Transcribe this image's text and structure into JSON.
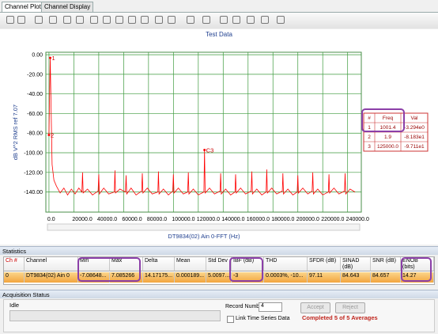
{
  "tabs": [
    "Channel Plot",
    "Channel Display"
  ],
  "chart": {
    "title": "Test Data",
    "y_label": "dB V^2 RMS ref 7.07",
    "x_label": "DT9834(02) Ain 0-FFT (Hz)",
    "xlim": [
      -2500,
      251000
    ],
    "ylim": [
      -160.5,
      2.5
    ],
    "yticks": [
      {
        "value": 0,
        "label": "0.00"
      },
      {
        "value": -20,
        "label": "-20.00"
      },
      {
        "value": -40,
        "label": "-40.00"
      },
      {
        "value": -60,
        "label": "-60.00"
      },
      {
        "value": -80,
        "label": "-80.00"
      },
      {
        "value": -100,
        "label": "-100.00"
      },
      {
        "value": -120,
        "label": "-120.00"
      },
      {
        "value": -140,
        "label": "-140.00"
      }
    ],
    "xticks": [
      {
        "value": 0,
        "label": "0.0"
      },
      {
        "value": 20000,
        "label": "20000.0"
      },
      {
        "value": 40000,
        "label": "40000.0"
      },
      {
        "value": 60000,
        "label": "60000.0"
      },
      {
        "value": 80000,
        "label": "80000.0"
      },
      {
        "value": 100000,
        "label": "100000.0"
      },
      {
        "value": 120000,
        "label": "120000.0"
      },
      {
        "value": 140000,
        "label": "140000.0"
      },
      {
        "value": 160000,
        "label": "160000.0"
      },
      {
        "value": 180000,
        "label": "180000.0"
      },
      {
        "value": 200000,
        "label": "200000.0"
      },
      {
        "value": 220000,
        "label": "220000.0"
      },
      {
        "value": 240000,
        "label": "240000.0"
      }
    ],
    "trace": {
      "color": "#ff0000",
      "x": [
        1.9,
        1001.4,
        2500,
        4000,
        6000,
        9000,
        12000,
        15000,
        18000,
        21000,
        24000,
        26500,
        27000,
        27500,
        31000,
        35000,
        39500,
        40000,
        40500,
        44000,
        48000,
        52500,
        53000,
        53500,
        57000,
        61500,
        62000,
        62500,
        66000,
        70000,
        74500,
        75000,
        75500,
        79000,
        83000,
        87500,
        88000,
        88500,
        92000,
        96000,
        99500,
        100000,
        100500,
        104000,
        108000,
        111500,
        112000,
        112500,
        116000,
        120000,
        124500,
        125000,
        125500,
        129000,
        133000,
        137500,
        138000,
        138500,
        142000,
        146000,
        149500,
        150000,
        150500,
        154000,
        158000,
        162500,
        163000,
        163500,
        167000,
        171000,
        174500,
        175000,
        175500,
        179000,
        183000,
        187500,
        188000,
        188500,
        192000,
        196000,
        199500,
        200000,
        200500,
        204000,
        208000,
        211500,
        212000,
        212500,
        216000,
        220000,
        224500,
        225000,
        225500,
        229000,
        233000,
        237500,
        238000,
        238500,
        242000,
        246000
      ],
      "y": [
        -81.83,
        -3.294,
        -112,
        -128,
        -134,
        -141,
        -136,
        -143,
        -137,
        -142,
        -136,
        -140,
        -120,
        -141,
        -137,
        -143,
        -139,
        -122,
        -142,
        -136,
        -142,
        -140,
        -118,
        -141,
        -137,
        -140,
        -123,
        -142,
        -136,
        -143,
        -139,
        -121,
        -141,
        -136,
        -142,
        -140,
        -119,
        -142,
        -137,
        -143,
        -139,
        -122,
        -141,
        -136,
        -142,
        -140,
        -120,
        -142,
        -137,
        -143,
        -140,
        -97.11,
        -141,
        -136,
        -142,
        -139,
        -121,
        -142,
        -137,
        -143,
        -140,
        -122,
        -141,
        -136,
        -142,
        -139,
        -119,
        -142,
        -137,
        -143,
        -140,
        -117,
        -141,
        -136,
        -142,
        -139,
        -121,
        -142,
        -137,
        -143,
        -140,
        -123,
        -141,
        -136,
        -142,
        -139,
        -120,
        -142,
        -137,
        -143,
        -140,
        -122,
        -141,
        -136,
        -142,
        -139,
        -121,
        -142,
        -137,
        -140
      ]
    },
    "markers": [
      {
        "label": "1",
        "x": 1001.4,
        "y": -3.294
      },
      {
        "label": "2",
        "x": 1.9,
        "y": -81.83
      },
      {
        "label": "C3",
        "x": 125000,
        "y": -97.11
      }
    ],
    "cursor_table": {
      "headers": [
        "#",
        "Freq",
        "Val"
      ],
      "rows": [
        [
          "1",
          "1001.4",
          "-3.294e0"
        ],
        [
          "2",
          "1.9",
          "-8.183e1"
        ],
        [
          "3",
          "125000.0",
          "-9.711e1"
        ]
      ]
    }
  },
  "statistics": {
    "title": "Statistics",
    "headers": [
      "Ch #",
      "Channel",
      "Min",
      "Max",
      "Delta",
      "Mean",
      "Std Dev",
      "IBF (dB)",
      "THD",
      "SFDR (dB)",
      "SINAD (dB)",
      "SNR (dB)",
      "ENOB (bits)"
    ],
    "rows": [
      [
        "0",
        "DT9834(02) Ain 0",
        "-7.08648...",
        "7.085266",
        "14.17175...",
        "0.000189...",
        "5.0097...",
        "-3",
        "0.0003%, -10...",
        "97.11",
        "84.643",
        "84.657",
        "14.27"
      ]
    ]
  },
  "acquisition": {
    "title": "Acquisition Status",
    "status": "Idle",
    "record_label": "Record Number",
    "record_value": "4",
    "accept": "Accept",
    "reject": "Reject",
    "link_label": "Link Time Series Data",
    "message": "Completed 5 of 5 Averages"
  }
}
